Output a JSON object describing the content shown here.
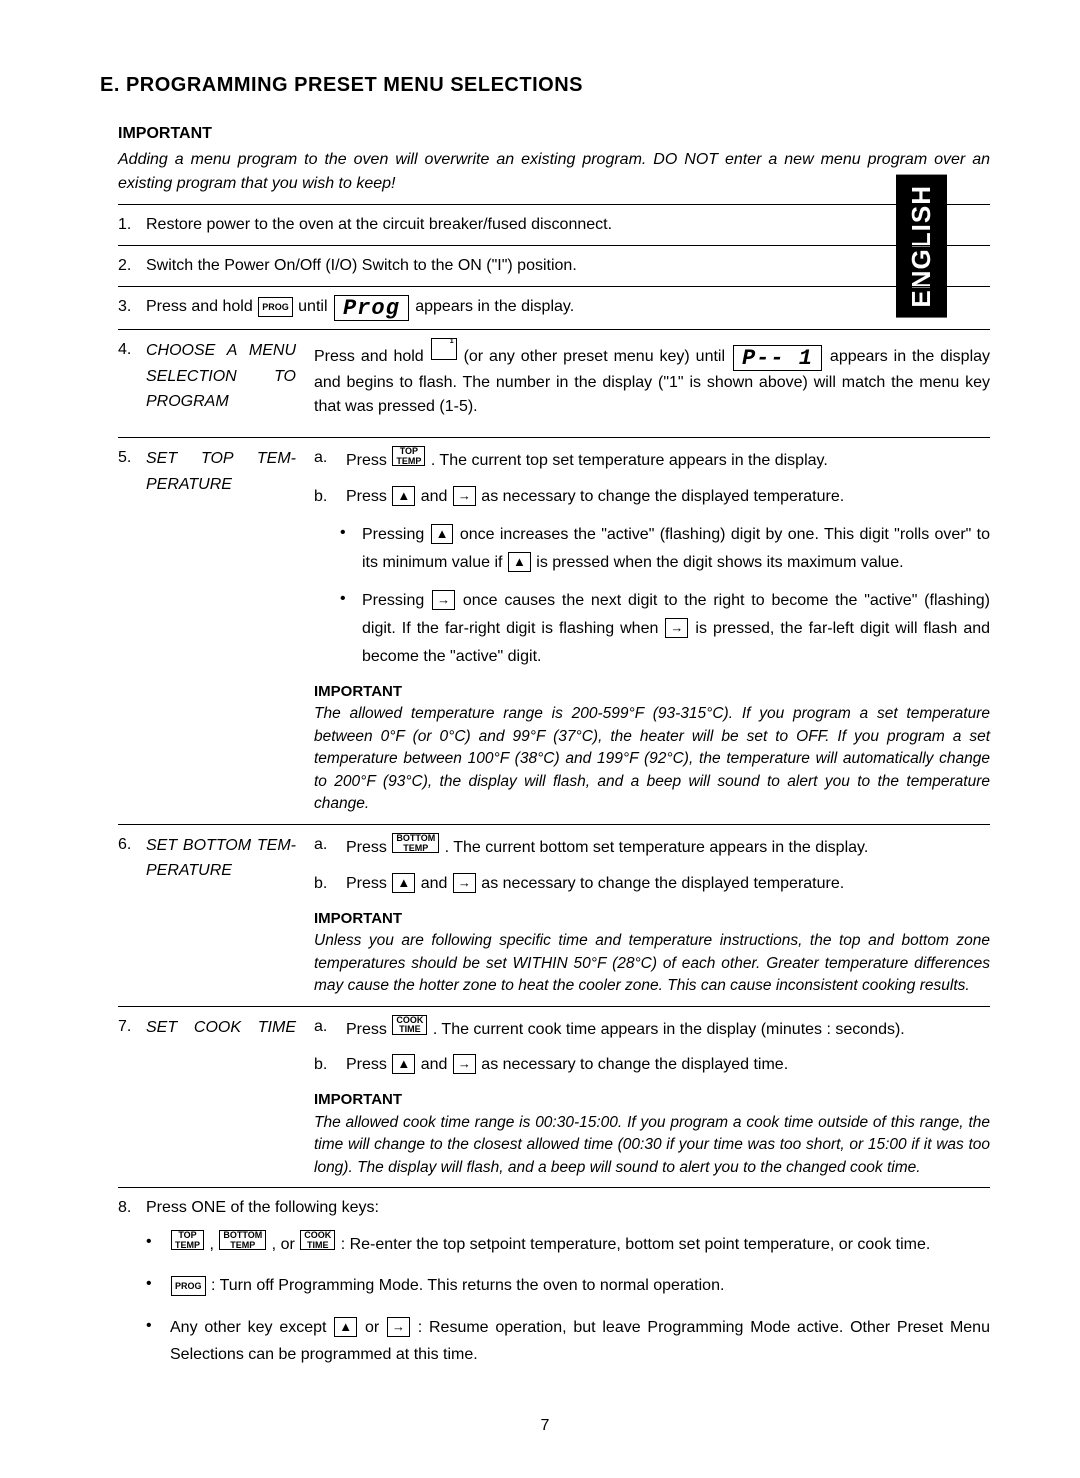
{
  "side_tab": "ENGLISH",
  "title": "E.  PROGRAMMING PRESET MENU SELECTIONS",
  "top_important_head": "IMPORTANT",
  "top_important_body": "Adding a menu program to the oven will overwrite an existing program.  DO NOT enter a new menu program over an existing program that you wish to keep!",
  "keys": {
    "prog": "PROG",
    "top_temp_l1": "TOP",
    "top_temp_l2": "TEMP",
    "bottom_temp_l1": "BOTTOM",
    "bottom_temp_l2": "TEMP",
    "cook_time_l1": "COOK",
    "cook_time_l2": "TIME",
    "up": "▲",
    "right": "→",
    "preset1": "1"
  },
  "displays": {
    "prog": "Prog",
    "p1": "P--  1"
  },
  "page_number": "7",
  "steps": {
    "s1": "Restore power to the oven at the circuit breaker/fused disconnect.",
    "s2": "Switch the Power On/Off (I/O) Switch to the ON (\"I\") position.",
    "s3_a": "Press and hold",
    "s3_b": "until",
    "s3_c": "appears in the display.",
    "s4_title": "CHOOSE A MENU SELECTION TO PROGRAM",
    "s4_a": "Press and hold",
    "s4_b": "(or any other preset menu key) until",
    "s4_c": "appears in the display and begins to flash.  The number in the display (\"1\" is shown above) will match the menu key that was pressed (1-5).",
    "s5_title": "SET TOP TEM-PERATURE",
    "s5_a_pre": "Press",
    "s5_a_post": ".  The current top set temperature appears in the display.",
    "s5_b_pre": "Press",
    "s5_b_mid": "and",
    "s5_b_post": "as necessary to change the displayed temperature.",
    "s5_bul1_pre": "Pressing",
    "s5_bul1_mid1": "once increases the \"active\" (flashing) digit by one.  This digit \"rolls over\" to its minimum value if",
    "s5_bul1_mid2": "is pressed when the digit shows its maximum value.",
    "s5_bul2_pre": "Pressing",
    "s5_bul2_mid1": "once causes the next digit to the right to become the \"active\" (flashing) digit.  If the far-right digit is flashing when",
    "s5_bul2_mid2": "is pressed, the far-left digit will flash and become the \"active\" digit.",
    "s5_imp_head": "IMPORTANT",
    "s5_imp_body": "The allowed temperature range is 200-599°F (93-315°C).  If you program a set temperature between 0°F (or 0°C) and 99°F (37°C), the heater will be set to OFF.  If you program a set temperature between 100°F (38°C) and 199°F (92°C), the temperature will automatically change to 200°F (93°C), the display will flash, and a beep will sound to alert you to the temperature change.",
    "s6_title": "SET BOTTOM TEM-PERATURE",
    "s6_a_pre": "Press",
    "s6_a_post": ".  The current bottom set temperature appears in the display.",
    "s6_b_pre": "Press",
    "s6_b_mid": "and",
    "s6_b_post": "as necessary to change the displayed temperature.",
    "s6_imp_head": "IMPORTANT",
    "s6_imp_body": "Unless you are following specific time and temperature instructions, the top and bottom zone temperatures should be set WITHIN 50°F (28°C) of each other.  Greater temperature differences may cause the hotter zone to heat the cooler zone.  This can cause inconsistent cooking results.",
    "s7_title": "SET COOK TIME",
    "s7_a_pre": "Press",
    "s7_a_post": ".  The current cook time appears in the display (minutes : seconds).",
    "s7_b_pre": "Press",
    "s7_b_mid": "and",
    "s7_b_post": "as necessary to change the displayed time.",
    "s7_imp_head": "IMPORTANT",
    "s7_imp_body": "The allowed cook time range is 00:30-15:00. If you program a cook time outside of this range, the time will change to the closest allowed time (00:30 if your time was too short, or 15:00 if it was too long).  The display will flash, and a beep will sound to alert you to the changed cook time.",
    "s8": "Press ONE of the following keys:",
    "s8_a_mid1": ",",
    "s8_a_mid2": ", or",
    "s8_a_post": ":  Re-enter the top setpoint temperature, bottom set point temperature, or cook time.",
    "s8_b_post": ":  Turn off Programming Mode.  This returns the oven to normal operation.",
    "s8_c_pre": "Any other key except",
    "s8_c_mid": "or",
    "s8_c_post": ":  Resume operation, but leave Programming Mode active.  Other Preset Menu Selections can be programmed at this time."
  }
}
